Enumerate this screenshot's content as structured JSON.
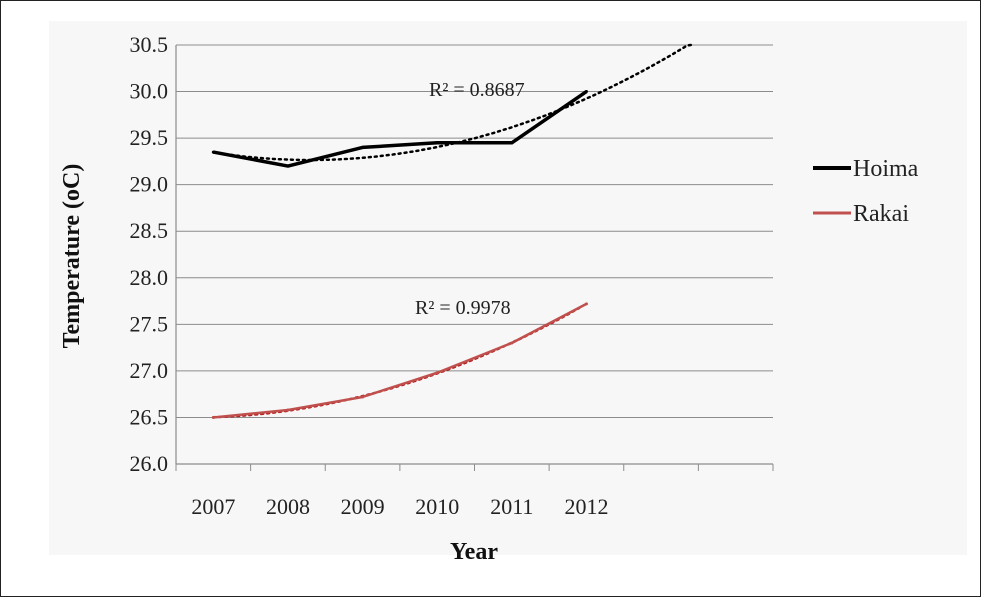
{
  "chart_data": {
    "type": "line",
    "title": "",
    "xlabel": "Year",
    "ylabel": "Temperature (oC)",
    "categories": [
      "2007",
      "2008",
      "2009",
      "2010",
      "2011",
      "2012"
    ],
    "ylim": [
      26.0,
      30.5
    ],
    "yticks": [
      "26.0",
      "26.5",
      "27.0",
      "27.5",
      "28.0",
      "28.5",
      "29.0",
      "29.5",
      "30.0",
      "30.5"
    ],
    "grid": true,
    "legend_position": "right",
    "series": [
      {
        "name": "Hoima",
        "values": [
          29.35,
          29.2,
          29.4,
          29.45,
          29.45,
          30.0
        ],
        "color": "#000000",
        "trend": {
          "type": "polynomial",
          "r2_label": "R² = 0.8687",
          "color": "#000000"
        }
      },
      {
        "name": "Rakai",
        "values": [
          26.5,
          26.58,
          26.72,
          26.98,
          27.3,
          27.72
        ],
        "color": "#c0504d",
        "trend": {
          "type": "polynomial",
          "r2_label": "R² = 0.9978",
          "color": "#b31f1f"
        }
      }
    ]
  }
}
